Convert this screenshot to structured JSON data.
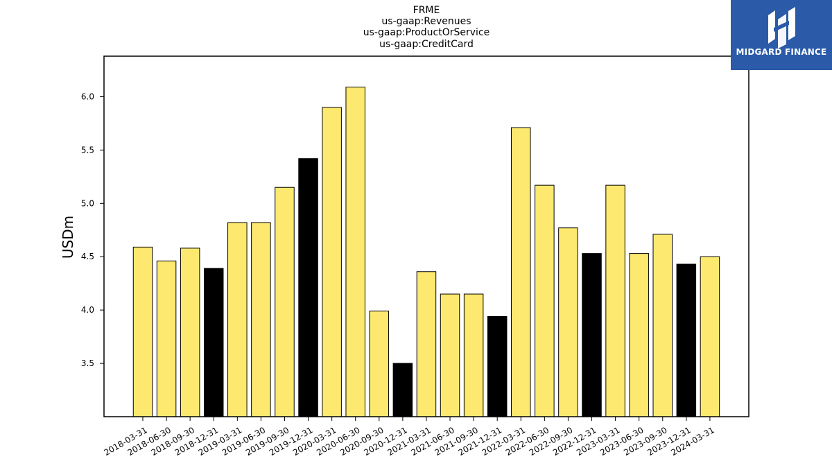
{
  "chart_data": {
    "type": "bar",
    "title_lines": [
      "FRME",
      "us-gaap:Revenues",
      "us-gaap:ProductOrService",
      "us-gaap:CreditCard"
    ],
    "ylabel": "USDm",
    "xlabel": "",
    "ylim": [
      3.0,
      6.38
    ],
    "yticks": [
      3.5,
      4.0,
      4.5,
      5.0,
      5.5,
      6.0
    ],
    "ytick_labels": [
      "3.5",
      "4.0",
      "4.5",
      "5.0",
      "5.5",
      "6.0"
    ],
    "categories": [
      "2018-03-31",
      "2018-06-30",
      "2018-09-30",
      "2018-12-31",
      "2019-03-31",
      "2019-06-30",
      "2019-09-30",
      "2019-12-31",
      "2020-03-31",
      "2020-06-30",
      "2020-09-30",
      "2020-12-31",
      "2021-03-31",
      "2021-06-30",
      "2021-09-30",
      "2021-12-31",
      "2022-03-31",
      "2022-06-30",
      "2022-09-30",
      "2022-12-31",
      "2023-03-31",
      "2023-06-30",
      "2023-09-30",
      "2023-12-31",
      "2024-03-31"
    ],
    "values": [
      4.59,
      4.46,
      4.58,
      4.39,
      4.82,
      4.82,
      5.15,
      5.42,
      5.9,
      6.09,
      3.99,
      3.5,
      4.36,
      4.15,
      4.15,
      3.94,
      5.71,
      5.17,
      4.77,
      4.53,
      5.17,
      4.53,
      4.71,
      4.43,
      4.5
    ],
    "highlight": [
      false,
      false,
      false,
      true,
      false,
      false,
      false,
      true,
      false,
      false,
      false,
      true,
      false,
      false,
      false,
      true,
      false,
      false,
      false,
      true,
      false,
      false,
      false,
      true,
      false
    ],
    "colors": {
      "bar": "#fde96f",
      "highlight": "#000000",
      "edge": "#000000",
      "axis": "#000000"
    },
    "grid": false,
    "legend": "none"
  },
  "logo": {
    "text": "MIDGARD FINANCE",
    "background": "#2a5aa8"
  }
}
